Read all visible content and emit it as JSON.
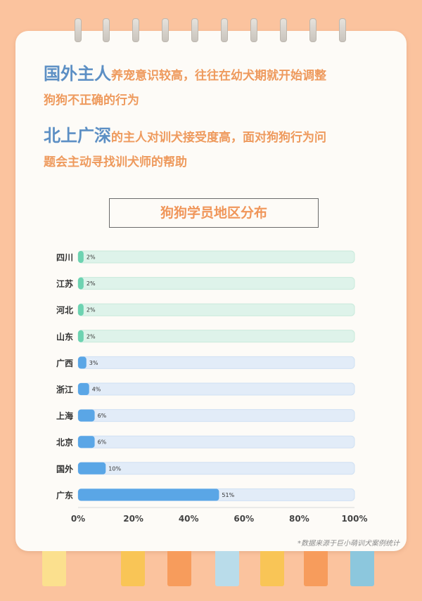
{
  "intro": {
    "p1_lead": "国外主人",
    "p1_rest_line1": "养宠意识较高，往往在幼犬期就开始调整",
    "p1_line2": "狗狗不正确的行为",
    "p2_lead": "北上广深",
    "p2_rest_line1": "的主人对训犬接受度高，面对狗狗行为问",
    "p2_line2": "题会主动寻找训犬师的帮助"
  },
  "footnote": "*数据来源于巨小萌训犬案例统计",
  "colors": {
    "accent_blue": "#5c8fc4",
    "accent_orange": "#ee9a5d",
    "bar_green": "#6dd3b1",
    "bar_blue": "#5aa6e6",
    "track_green": "#def3ea",
    "track_blue": "#e2ecf8"
  },
  "chart_data": {
    "type": "bar",
    "orientation": "horizontal",
    "title": "狗狗学员地区分布",
    "categories": [
      "四川",
      "江苏",
      "河北",
      "山东",
      "广西",
      "浙江",
      "上海",
      "北京",
      "国外",
      "广东"
    ],
    "values": [
      2,
      2,
      2,
      2,
      3,
      4,
      6,
      6,
      10,
      51
    ],
    "value_labels": [
      "2%",
      "2%",
      "2%",
      "2%",
      "3%",
      "4%",
      "6%",
      "6%",
      "10%",
      "51%"
    ],
    "xlim": [
      0,
      100
    ],
    "x_ticks": [
      "0%",
      "20%",
      "40%",
      "60%",
      "80%",
      "100%"
    ],
    "grid": false,
    "legend": "none"
  },
  "tabs": [
    {
      "color": "#fbe08e"
    },
    {
      "color": "#f9c556"
    },
    {
      "color": "#f79c5c"
    },
    {
      "color": "#b9dcea"
    },
    {
      "color": "#f9c556"
    },
    {
      "color": "#f79c5c"
    },
    {
      "color": "#8cc7dd"
    }
  ]
}
